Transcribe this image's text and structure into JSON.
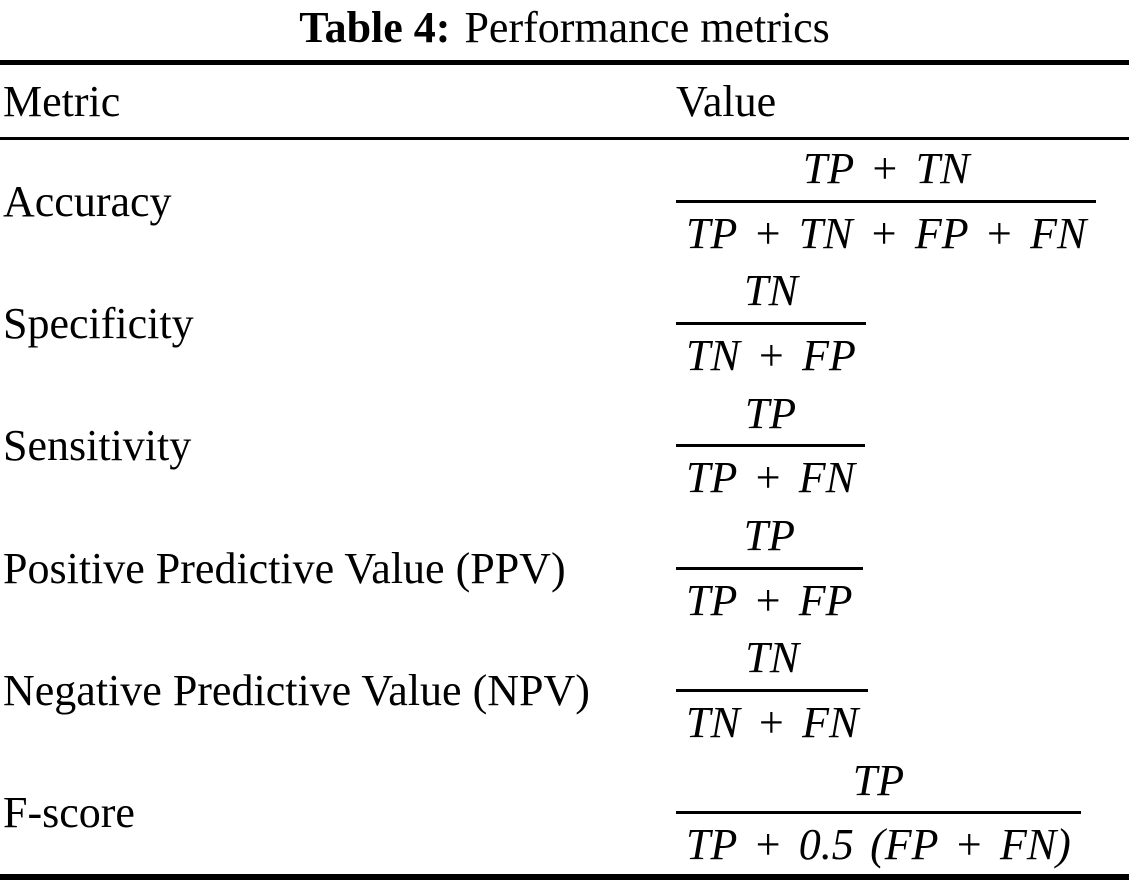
{
  "caption": {
    "label": "Table 4:",
    "text": "Performance metrics"
  },
  "table": {
    "columns": [
      "Metric",
      "Value"
    ],
    "rows": [
      {
        "metric": "Accuracy",
        "formula": {
          "numerator": "TP + TN",
          "denominator": "TP + TN + FP + FN"
        }
      },
      {
        "metric": "Specificity",
        "formula": {
          "numerator": "TN",
          "denominator": "TN + FP"
        }
      },
      {
        "metric": "Sensitivity",
        "formula": {
          "numerator": "TP",
          "denominator": "TP + FN"
        }
      },
      {
        "metric": "Positive Predictive Value (PPV)",
        "formula": {
          "numerator": "TP",
          "denominator": "TP + FP"
        }
      },
      {
        "metric": "Negative Predictive Value (NPV)",
        "formula": {
          "numerator": "TN",
          "denominator": "TN + FN"
        }
      },
      {
        "metric": "F-score",
        "formula": {
          "numerator": "TP",
          "denominator": "TP + 0.5 (FP + FN)"
        }
      }
    ]
  },
  "colors": {
    "text": "#000000",
    "background": "#ffffff",
    "rule": "#000000"
  }
}
